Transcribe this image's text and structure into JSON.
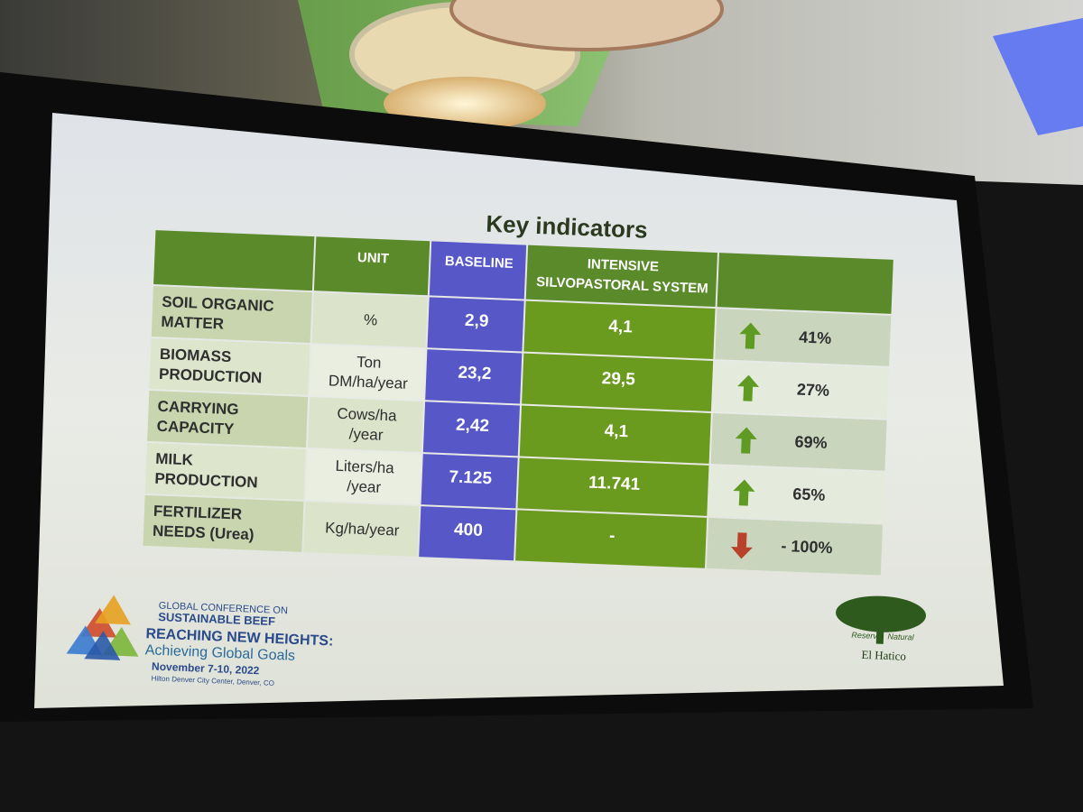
{
  "slide": {
    "title": "Key indicators",
    "table": {
      "columns": {
        "unit": "UNIT",
        "baseline": "BASELINE",
        "system": [
          "INTENSIVE",
          "SILVOPASTORAL SYSTEM"
        ]
      },
      "rows": [
        {
          "indicator": [
            "SOIL ORGANIC",
            "MATTER"
          ],
          "unit": [
            "%"
          ],
          "baseline": "2,9",
          "system": "4,1",
          "trend": "up",
          "change": "41%"
        },
        {
          "indicator": [
            "BIOMASS",
            "PRODUCTION"
          ],
          "unit": [
            "Ton",
            "DM/ha/year"
          ],
          "baseline": "23,2",
          "system": "29,5",
          "trend": "up",
          "change": "27%"
        },
        {
          "indicator": [
            "CARRYING",
            "CAPACITY"
          ],
          "unit": [
            "Cows/ha",
            "/year"
          ],
          "baseline": "2,42",
          "system": "4,1",
          "trend": "up",
          "change": "69%"
        },
        {
          "indicator": [
            "MILK",
            "PRODUCTION"
          ],
          "unit": [
            "Liters/ha",
            "/year"
          ],
          "baseline": "7.125",
          "system": "11.741",
          "trend": "up",
          "change": "65%"
        },
        {
          "indicator": [
            "FERTILIZER",
            "NEEDS (Urea)"
          ],
          "unit": [
            "Kg/ha/year"
          ],
          "baseline": "400",
          "system": "-",
          "trend": "down",
          "change": "- 100%"
        }
      ]
    },
    "conference": {
      "kicker": "GLOBAL CONFERENCE ON",
      "name": "SUSTAINABLE BEEF",
      "theme": "REACHING NEW HEIGHTS:",
      "subtheme": "Achieving Global Goals",
      "dates": "November 7-10, 2022",
      "venue": "Hilton Denver City Center, Denver, CO"
    },
    "partner": {
      "top": "Reserva",
      "right": "Natural",
      "name": "El Hatico"
    }
  }
}
